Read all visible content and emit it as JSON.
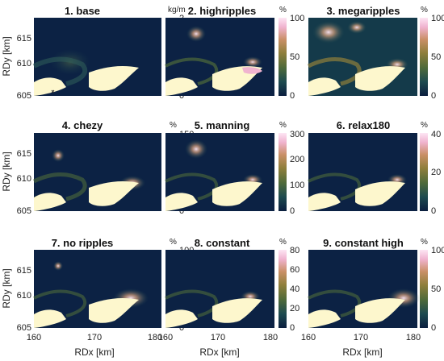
{
  "figure": {
    "panels": [
      {
        "title": "1. base",
        "unit": "kg/m",
        "cbar_ticks": [
          "2",
          "1",
          "0"
        ]
      },
      {
        "title": "2. highripples",
        "unit": "%",
        "cbar_ticks": [
          "100",
          "50",
          "0"
        ]
      },
      {
        "title": "3. megaripples",
        "unit": "%",
        "cbar_ticks": [
          "100",
          "50",
          "0"
        ]
      },
      {
        "title": "4. chezy",
        "unit": "%",
        "cbar_ticks": [
          "150",
          "100",
          "50",
          "0"
        ]
      },
      {
        "title": "5. manning",
        "unit": "%",
        "cbar_ticks": [
          "300",
          "200",
          "100",
          "0"
        ]
      },
      {
        "title": "6. relax180",
        "unit": "%",
        "cbar_ticks": [
          "40",
          "20",
          "0"
        ]
      },
      {
        "title": "7. no ripples",
        "unit": "%",
        "cbar_ticks": [
          "100",
          "50",
          "0"
        ]
      },
      {
        "title": "8. constant",
        "unit": "%",
        "cbar_ticks": [
          "80",
          "60",
          "40",
          "20",
          "0"
        ]
      },
      {
        "title": "9. constant high",
        "unit": "%",
        "cbar_ticks": [
          "100",
          "50",
          "0"
        ]
      }
    ],
    "y_tick_labels": [
      "615",
      "610",
      "605"
    ],
    "x_tick_labels": [
      "160",
      "170",
      "180"
    ],
    "ylabel": "RDy [km]",
    "xlabel": "RDx [km]"
  },
  "chart_data": {
    "type": "heatmap",
    "layout": "3x3 small multiples",
    "xlabel": "RDx [km]",
    "ylabel": "RDy [km]",
    "xlim": [
      160,
      181
    ],
    "ylim": [
      605,
      618.5
    ],
    "x_ticks": [
      160,
      170,
      180
    ],
    "y_ticks": [
      605,
      610,
      615
    ],
    "panels": [
      {
        "title": "1. base",
        "unit": "kg/m",
        "clim": [
          0,
          2
        ]
      },
      {
        "title": "2. highripples",
        "unit": "%",
        "clim": [
          0,
          100
        ]
      },
      {
        "title": "3. megaripples",
        "unit": "%",
        "clim": [
          0,
          100
        ]
      },
      {
        "title": "4. chezy",
        "unit": "%",
        "clim": [
          0,
          150
        ]
      },
      {
        "title": "5. manning",
        "unit": "%",
        "clim": [
          0,
          300
        ]
      },
      {
        "title": "6. relax180",
        "unit": "%",
        "clim": [
          0,
          40
        ]
      },
      {
        "title": "7. no ripples",
        "unit": "%",
        "clim": [
          0,
          100
        ]
      },
      {
        "title": "8. constant",
        "unit": "%",
        "clim": [
          0,
          80
        ]
      },
      {
        "title": "9. constant high",
        "unit": "%",
        "clim": [
          0,
          100
        ]
      }
    ],
    "colormap": [
      "#0b1e3f",
      "#1d4a4f",
      "#4e6a3a",
      "#8f7f3b",
      "#c98f66",
      "#f0b3cf",
      "#fde6f4"
    ],
    "land_color": "#fdf7cd"
  }
}
